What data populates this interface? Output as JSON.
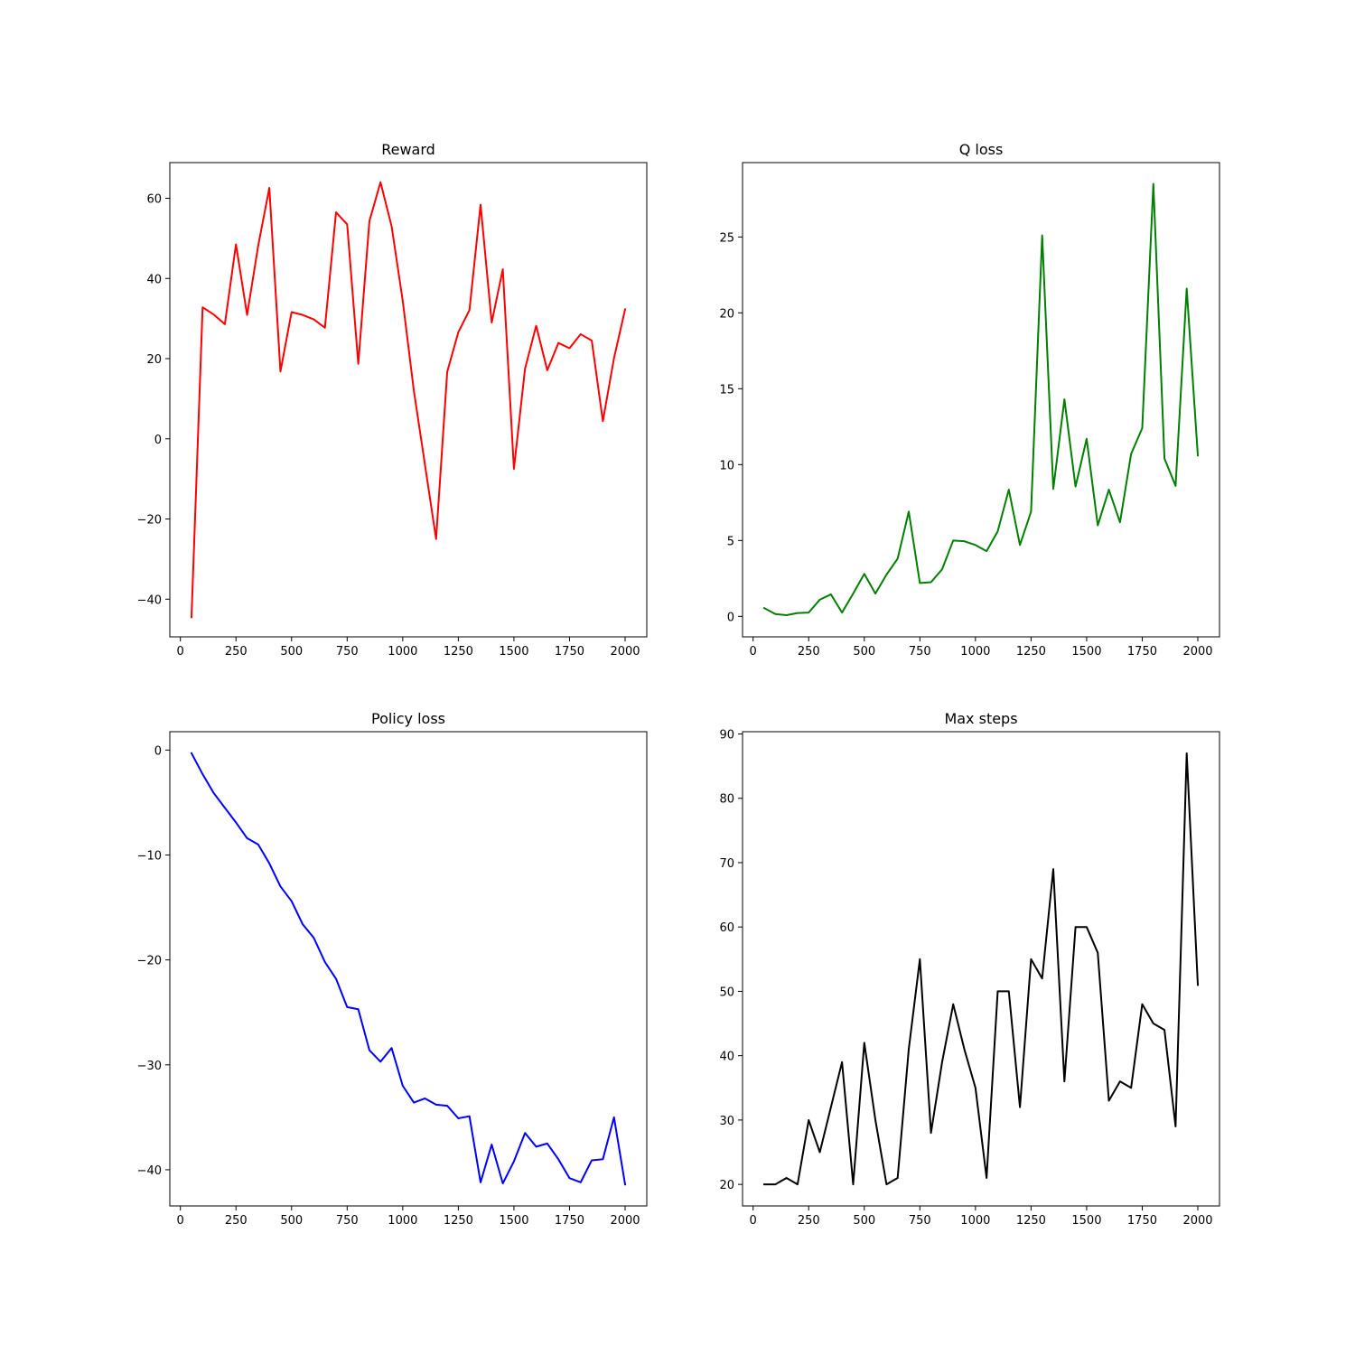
{
  "chart_data": [
    {
      "type": "line",
      "title": "Reward",
      "color": "#ff0000",
      "xlabel": "",
      "ylabel": "",
      "x": [
        50,
        100,
        150,
        200,
        250,
        300,
        350,
        400,
        450,
        500,
        550,
        600,
        650,
        700,
        750,
        800,
        850,
        900,
        950,
        1000,
        1050,
        1100,
        1150,
        1200,
        1250,
        1300,
        1350,
        1400,
        1450,
        1500,
        1550,
        1600,
        1650,
        1700,
        1750,
        1800,
        1850,
        1900,
        1950,
        2000
      ],
      "values": [
        -44.5,
        32.8,
        31.0,
        28.6,
        48.5,
        30.9,
        48.2,
        62.6,
        16.8,
        31.6,
        30.9,
        29.8,
        27.7,
        56.5,
        53.5,
        18.7,
        54.3,
        64.0,
        53.0,
        34.4,
        12.0,
        -6.5,
        -25.0,
        16.7,
        26.6,
        32.1,
        58.4,
        29.0,
        42.3,
        -7.5,
        17.5,
        28.2,
        17.1,
        23.9,
        22.6,
        26.1,
        24.5,
        4.4,
        20.1,
        32.3
      ],
      "xticks": [
        "0",
        "250",
        "500",
        "750",
        "1000",
        "1250",
        "1500",
        "1750",
        "2000"
      ],
      "xtick_values": [
        0,
        250,
        500,
        750,
        1000,
        1250,
        1500,
        1750,
        2000
      ],
      "yticks": [
        "−40",
        "−20",
        "0",
        "20",
        "40",
        "60"
      ],
      "ytick_values": [
        -40,
        -20,
        0,
        20,
        40,
        60
      ],
      "xlim": [
        -47.5,
        2097.5
      ],
      "ylim": [
        -49.4,
        68.9
      ]
    },
    {
      "type": "line",
      "title": "Q loss",
      "color": "#008000",
      "xlabel": "",
      "ylabel": "",
      "x": [
        50,
        100,
        150,
        200,
        250,
        300,
        350,
        400,
        450,
        500,
        550,
        600,
        650,
        700,
        750,
        800,
        850,
        900,
        950,
        1000,
        1050,
        1100,
        1150,
        1200,
        1250,
        1300,
        1350,
        1400,
        1450,
        1500,
        1550,
        1600,
        1650,
        1700,
        1750,
        1800,
        1850,
        1900,
        1950,
        2000
      ],
      "values": [
        0.55,
        0.15,
        0.08,
        0.22,
        0.25,
        1.1,
        1.45,
        0.25,
        1.5,
        2.8,
        1.5,
        2.75,
        3.8,
        6.9,
        2.2,
        2.25,
        3.1,
        5.0,
        4.95,
        4.7,
        4.3,
        5.6,
        8.35,
        4.7,
        6.9,
        25.1,
        8.4,
        14.3,
        8.55,
        11.7,
        6.0,
        8.35,
        6.2,
        10.7,
        12.4,
        28.5,
        10.4,
        8.6,
        21.6,
        10.6
      ],
      "xticks": [
        "0",
        "250",
        "500",
        "750",
        "1000",
        "1250",
        "1500",
        "1750",
        "2000"
      ],
      "xtick_values": [
        0,
        250,
        500,
        750,
        1000,
        1250,
        1500,
        1750,
        2000
      ],
      "yticks": [
        "0",
        "5",
        "10",
        "15",
        "20",
        "25"
      ],
      "ytick_values": [
        0,
        5,
        10,
        15,
        20,
        25
      ],
      "xlim": [
        -47.5,
        2097.5
      ],
      "ylim": [
        -1.35,
        29.9
      ]
    },
    {
      "type": "line",
      "title": "Policy loss",
      "color": "#0000ff",
      "xlabel": "",
      "ylabel": "",
      "x": [
        50,
        100,
        150,
        200,
        250,
        300,
        350,
        400,
        450,
        500,
        550,
        600,
        650,
        700,
        750,
        800,
        850,
        900,
        950,
        1000,
        1050,
        1100,
        1150,
        1200,
        1250,
        1300,
        1350,
        1400,
        1450,
        1500,
        1550,
        1600,
        1650,
        1700,
        1750,
        1800,
        1850,
        1900,
        1950,
        2000
      ],
      "values": [
        -0.3,
        -2.3,
        -4.1,
        -5.5,
        -6.9,
        -8.4,
        -9.0,
        -10.8,
        -13.0,
        -14.4,
        -16.6,
        -17.9,
        -20.2,
        -21.8,
        -24.5,
        -24.7,
        -28.6,
        -29.7,
        -28.4,
        -32.0,
        -33.6,
        -33.2,
        -33.8,
        -33.9,
        -35.1,
        -34.9,
        -41.2,
        -37.6,
        -41.3,
        -39.2,
        -36.5,
        -37.8,
        -37.5,
        -39.0,
        -40.8,
        -41.2,
        -39.1,
        -39.0,
        -35.0,
        -41.4
      ],
      "xticks": [
        "0",
        "250",
        "500",
        "750",
        "1000",
        "1250",
        "1500",
        "1750",
        "2000"
      ],
      "xtick_values": [
        0,
        250,
        500,
        750,
        1000,
        1250,
        1500,
        1750,
        2000
      ],
      "yticks": [
        "0",
        "−10",
        "−20",
        "−30",
        "−40"
      ],
      "ytick_values": [
        0,
        -10,
        -20,
        -30,
        -40
      ],
      "xlim": [
        -47.5,
        2097.5
      ],
      "ylim": [
        -43.45,
        1.75
      ]
    },
    {
      "type": "line",
      "title": "Max steps",
      "color": "#000000",
      "xlabel": "",
      "ylabel": "",
      "x": [
        50,
        100,
        150,
        200,
        250,
        300,
        350,
        400,
        450,
        500,
        550,
        600,
        650,
        700,
        750,
        800,
        850,
        900,
        950,
        1000,
        1050,
        1100,
        1150,
        1200,
        1250,
        1300,
        1350,
        1400,
        1450,
        1500,
        1550,
        1600,
        1650,
        1700,
        1750,
        1800,
        1850,
        1900,
        1950,
        2000
      ],
      "values": [
        20,
        20,
        21,
        20,
        30,
        25,
        32,
        39,
        20,
        42,
        30,
        20,
        21,
        41,
        55,
        28,
        39,
        48,
        41,
        35,
        21,
        50,
        50,
        32,
        55,
        52,
        69,
        36,
        60,
        60,
        56,
        33,
        36,
        35,
        48,
        45,
        44,
        29,
        87,
        51
      ],
      "xticks": [
        "0",
        "250",
        "500",
        "750",
        "1000",
        "1250",
        "1500",
        "1750",
        "2000"
      ],
      "xtick_values": [
        0,
        250,
        500,
        750,
        1000,
        1250,
        1500,
        1750,
        2000
      ],
      "yticks": [
        "20",
        "30",
        "40",
        "50",
        "60",
        "70",
        "80",
        "90"
      ],
      "ytick_values": [
        20,
        30,
        40,
        50,
        60,
        70,
        80,
        90
      ],
      "xlim": [
        -47.5,
        2097.5
      ],
      "ylim": [
        16.65,
        90.35
      ]
    }
  ]
}
